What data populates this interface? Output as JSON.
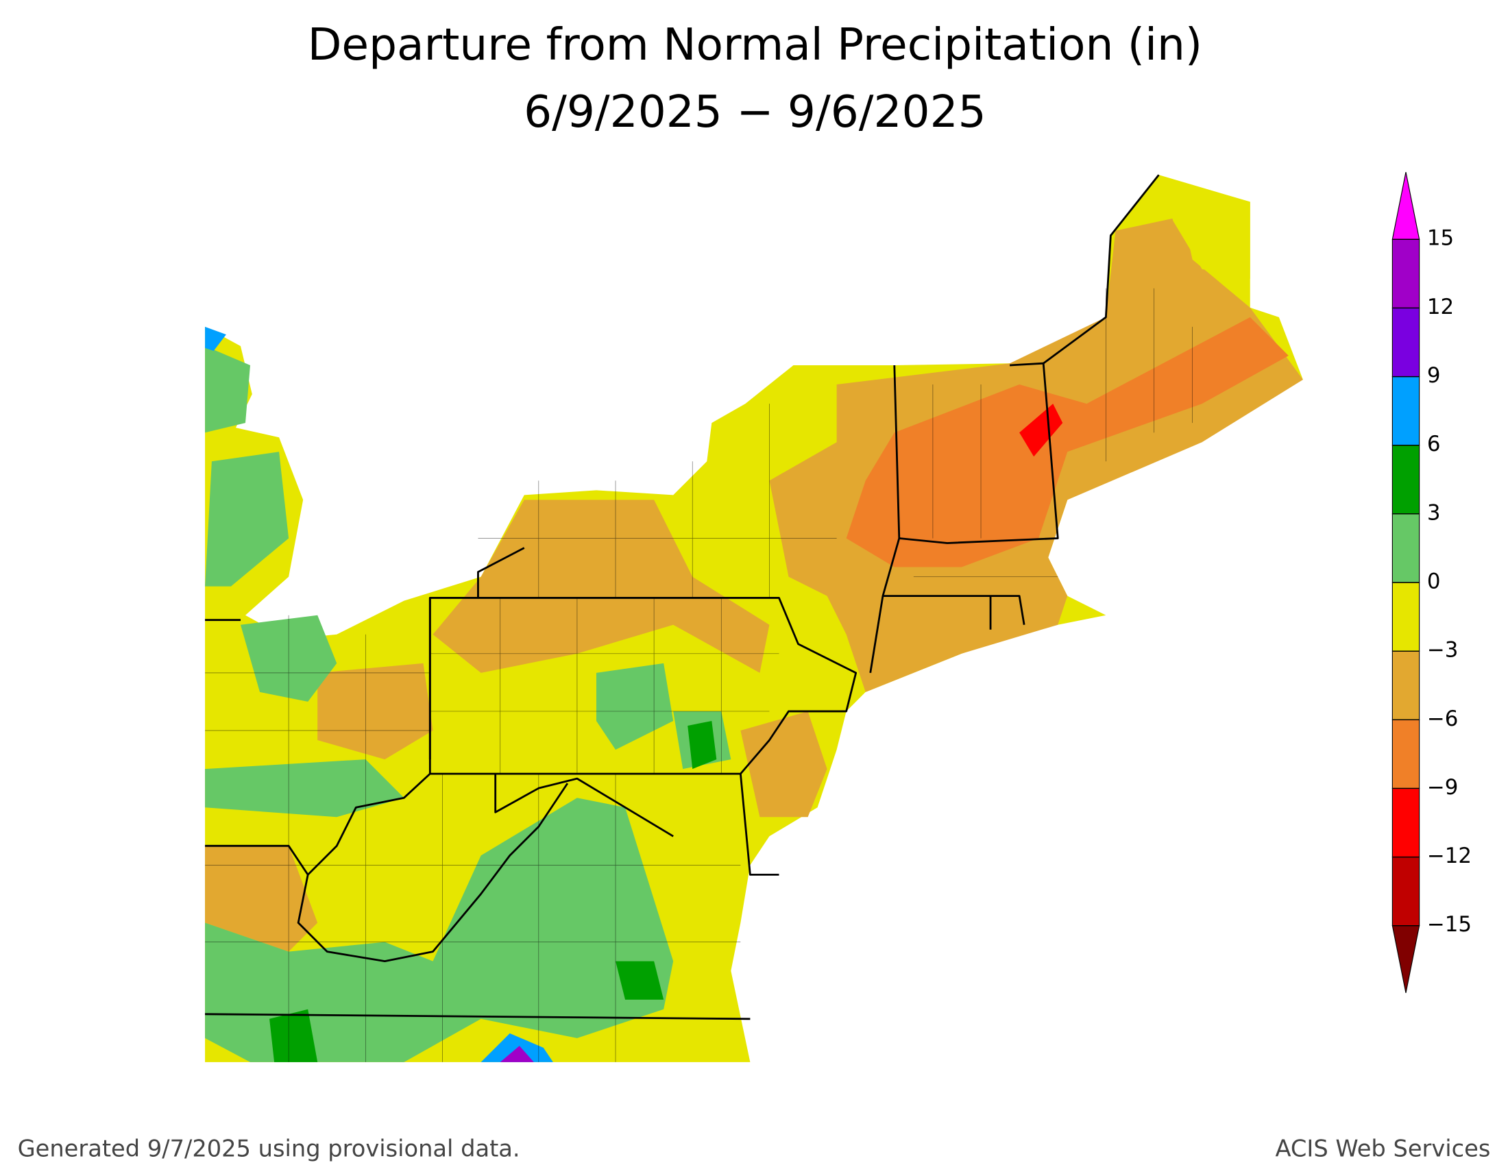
{
  "header": {
    "title": "Departure from Normal Precipitation (in)",
    "subtitle": "6/9/2025 − 9/6/2025"
  },
  "legend": {
    "range": [
      -15,
      15
    ],
    "ticks": [
      {
        "value": -15,
        "label": "−15"
      },
      {
        "value": -12,
        "label": "−12"
      },
      {
        "value": -9,
        "label": "−9"
      },
      {
        "value": -6,
        "label": "−6"
      },
      {
        "value": -3,
        "label": "−3"
      },
      0,
      3,
      6,
      9,
      12,
      15
    ],
    "colors": [
      "#c00000",
      "#ff0000",
      "#f08028",
      "#e2a830",
      "#e6e600",
      "#66c866",
      "#00a000",
      "#00a0ff",
      "#7a00e0",
      "#a000c8"
    ],
    "under_color": "#800000",
    "over_color": "#ff00ff"
  },
  "footer": {
    "left": "Generated 9/7/2025 using provisional data.",
    "right": "ACIS Web Services"
  }
}
